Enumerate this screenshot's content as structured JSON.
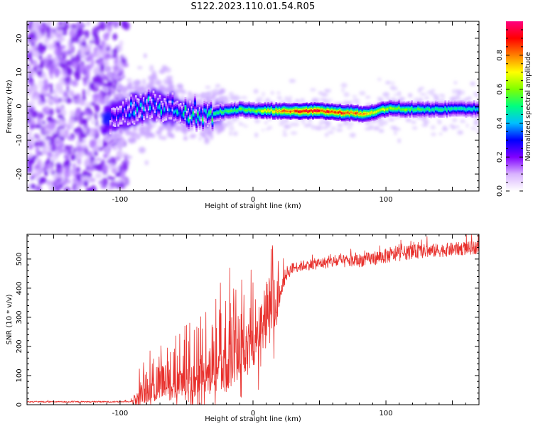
{
  "figure": {
    "title": "S122.2023.110.01.54.R05"
  },
  "chart_data": [
    {
      "type": "heatmap",
      "xlabel": "Height of straight line (km)",
      "ylabel": "Frequency (Hz)",
      "xlim": [
        -170,
        170
      ],
      "ylim": [
        -25,
        25
      ],
      "x_ticks": [
        -100,
        0,
        100
      ],
      "y_ticks": [
        -20,
        -10,
        0,
        10,
        20
      ],
      "colorbar": {
        "label": "Normalized spectral amplitude",
        "range": [
          0,
          1
        ],
        "ticks": [
          0.0,
          0.2,
          0.4,
          0.6,
          0.8
        ],
        "colormap": [
          "#ffffff",
          "#d9b3ff",
          "#8000ff",
          "#0000ff",
          "#00bfff",
          "#00ff80",
          "#80ff00",
          "#ffff00",
          "#ff8000",
          "#ff0000",
          "#ff0080"
        ]
      },
      "ridge_centre_hz": [
        {
          "x": -105,
          "y": -3.5
        },
        {
          "x": -90,
          "y": -1
        },
        {
          "x": -75,
          "y": 0
        },
        {
          "x": -60,
          "y": -1
        },
        {
          "x": -50,
          "y": -2
        },
        {
          "x": -35,
          "y": -2.5
        },
        {
          "x": -20,
          "y": -1.5
        },
        {
          "x": -10,
          "y": -1
        },
        {
          "x": 0,
          "y": -1.2
        },
        {
          "x": 20,
          "y": -1.5
        },
        {
          "x": 50,
          "y": -1.5
        },
        {
          "x": 70,
          "y": -2
        },
        {
          "x": 85,
          "y": -2.3
        },
        {
          "x": 100,
          "y": -0.8
        },
        {
          "x": 130,
          "y": -1
        },
        {
          "x": 170,
          "y": -0.8
        }
      ],
      "ridge_peak_amplitude": [
        {
          "x": -105,
          "y": 0.3
        },
        {
          "x": -85,
          "y": 0.4
        },
        {
          "x": -60,
          "y": 0.45
        },
        {
          "x": -40,
          "y": 0.5
        },
        {
          "x": -20,
          "y": 0.55
        },
        {
          "x": 0,
          "y": 0.6
        },
        {
          "x": 20,
          "y": 0.8
        },
        {
          "x": 40,
          "y": 0.95
        },
        {
          "x": 60,
          "y": 0.9
        },
        {
          "x": 75,
          "y": 0.85
        },
        {
          "x": 90,
          "y": 0.7
        },
        {
          "x": 110,
          "y": 0.6
        },
        {
          "x": 140,
          "y": 0.5
        },
        {
          "x": 170,
          "y": 0.45
        }
      ]
    },
    {
      "type": "line",
      "xlabel": "Height of straight line (km)",
      "ylabel": "SNR (10 * v/v)",
      "xlim": [
        -170,
        170
      ],
      "ylim": [
        0,
        585
      ],
      "x_ticks": [
        -100,
        0,
        100
      ],
      "y_ticks": [
        0,
        100,
        200,
        300,
        400,
        500
      ],
      "series": [
        {
          "color": "#e8302c",
          "baseline": [
            {
              "x": -170,
              "y": 10
            },
            {
              "x": -100,
              "y": 10
            },
            {
              "x": -90,
              "y": 12
            },
            {
              "x": -85,
              "y": 30
            },
            {
              "x": -70,
              "y": 50
            },
            {
              "x": -50,
              "y": 75
            },
            {
              "x": -30,
              "y": 100
            },
            {
              "x": -15,
              "y": 140
            },
            {
              "x": -5,
              "y": 180
            },
            {
              "x": 5,
              "y": 230
            },
            {
              "x": 15,
              "y": 300
            },
            {
              "x": 20,
              "y": 380
            },
            {
              "x": 25,
              "y": 450
            },
            {
              "x": 30,
              "y": 470
            },
            {
              "x": 40,
              "y": 480
            },
            {
              "x": 60,
              "y": 490
            },
            {
              "x": 80,
              "y": 495
            },
            {
              "x": 100,
              "y": 510
            },
            {
              "x": 120,
              "y": 525
            },
            {
              "x": 140,
              "y": 530
            },
            {
              "x": 170,
              "y": 540
            }
          ],
          "spike_amplitude": [
            {
              "x": -170,
              "y": 5
            },
            {
              "x": -92,
              "y": 5
            },
            {
              "x": -85,
              "y": 80
            },
            {
              "x": -60,
              "y": 110
            },
            {
              "x": -40,
              "y": 170
            },
            {
              "x": -20,
              "y": 220
            },
            {
              "x": 0,
              "y": 210
            },
            {
              "x": 15,
              "y": 200
            },
            {
              "x": 22,
              "y": 60
            },
            {
              "x": 30,
              "y": 35
            },
            {
              "x": 100,
              "y": 50
            },
            {
              "x": 170,
              "y": 45
            }
          ]
        }
      ]
    }
  ]
}
